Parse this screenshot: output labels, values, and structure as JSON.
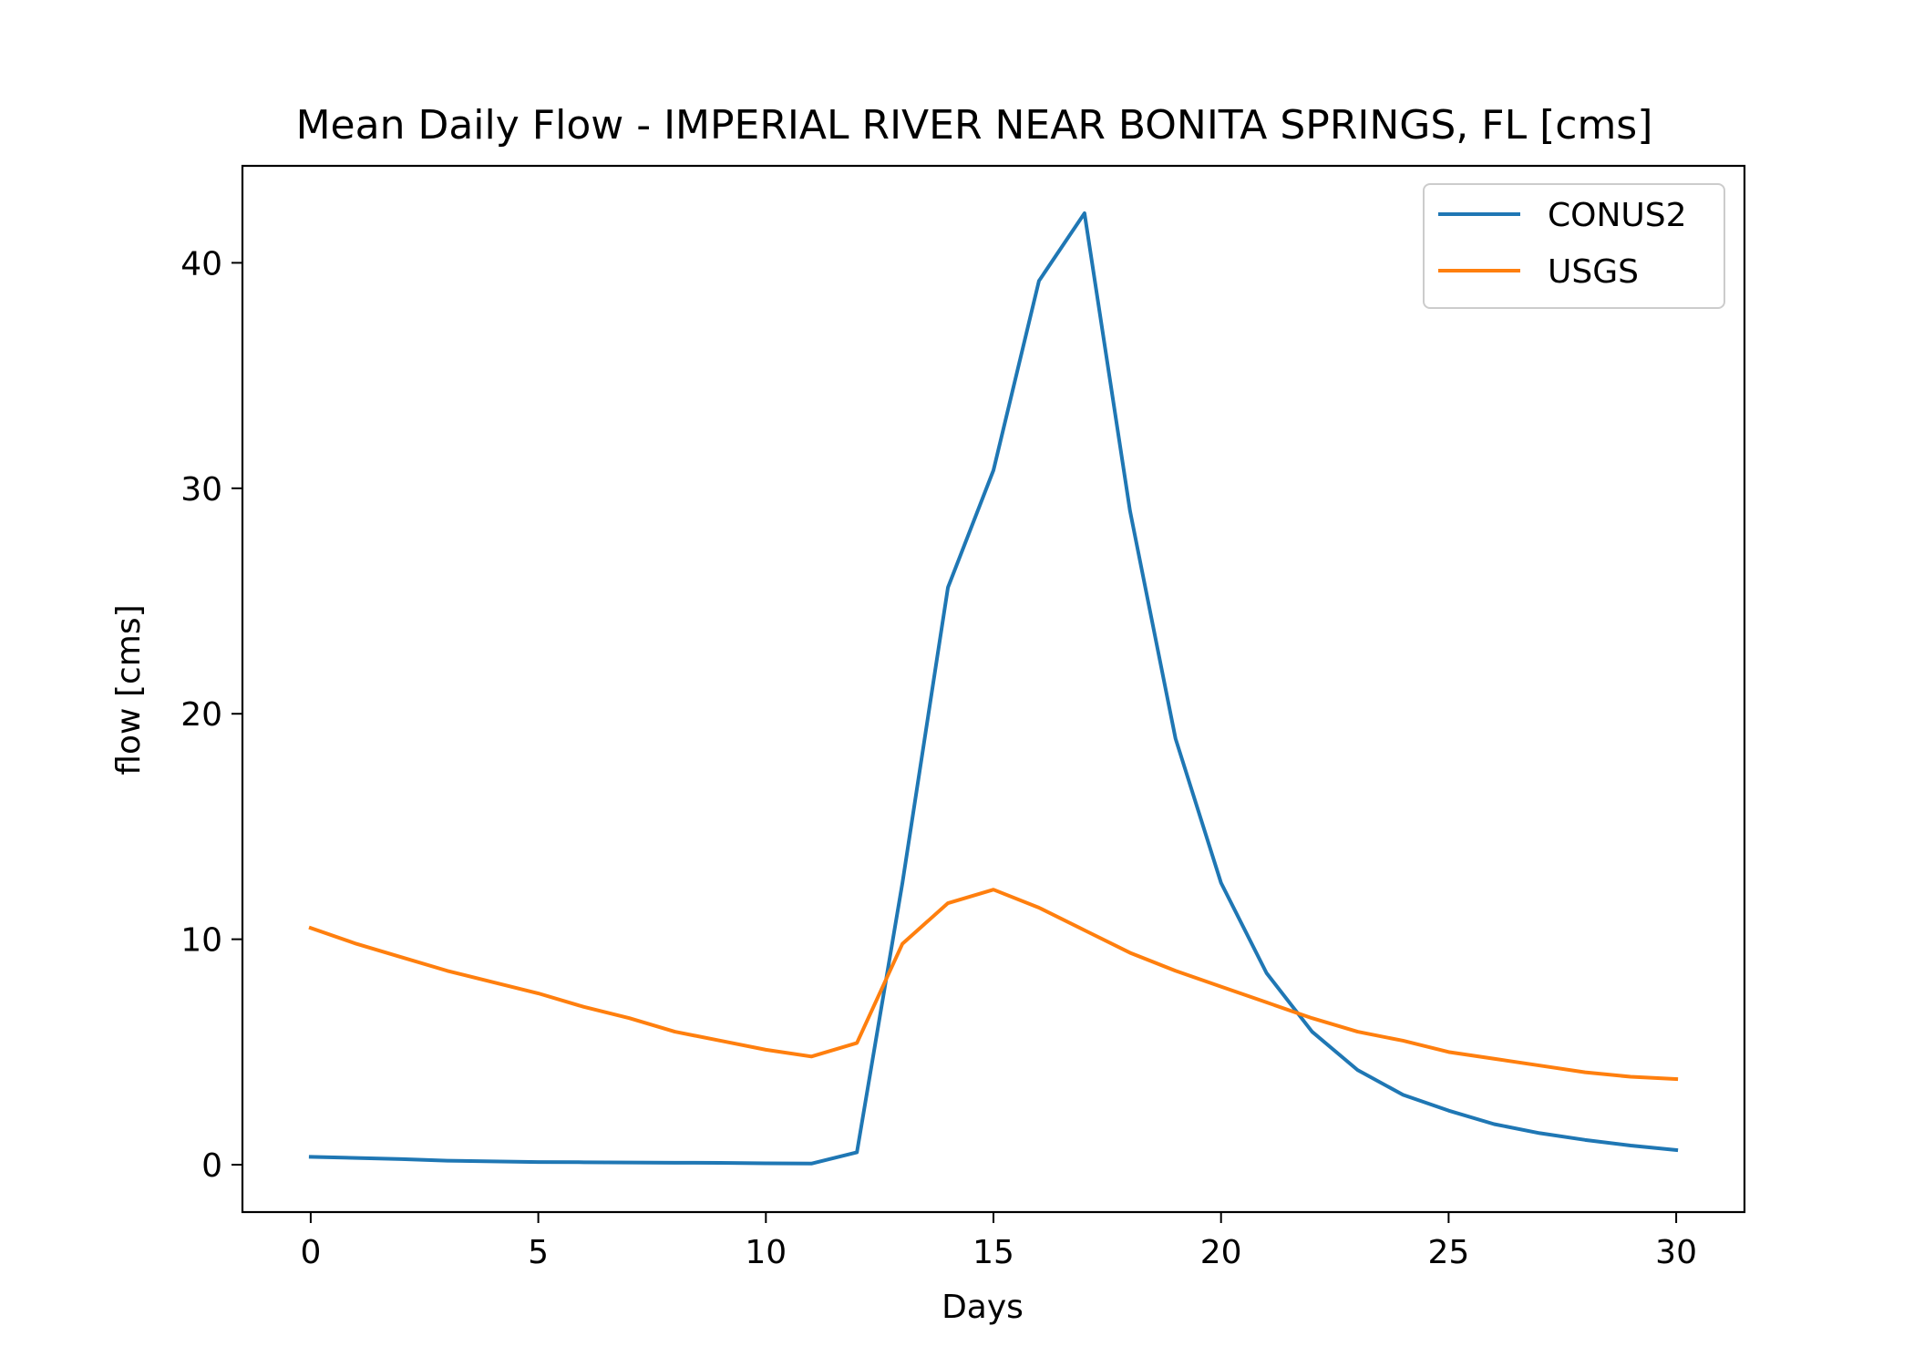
{
  "chart_data": {
    "type": "line",
    "title": "Mean Daily Flow - IMPERIAL RIVER NEAR BONITA SPRINGS, FL [cms]",
    "xlabel": "Days",
    "ylabel": "flow [cms]",
    "xlim": [
      -1.5,
      31.5
    ],
    "ylim": [
      -2.1,
      44.3
    ],
    "xticks": [
      0,
      5,
      10,
      15,
      20,
      25,
      30
    ],
    "yticks": [
      0,
      10,
      20,
      30,
      40
    ],
    "grid": false,
    "legend_position": "top-right",
    "x": [
      0,
      1,
      2,
      3,
      4,
      5,
      6,
      7,
      8,
      9,
      10,
      11,
      12,
      13,
      14,
      15,
      16,
      17,
      18,
      19,
      20,
      21,
      22,
      23,
      24,
      25,
      26,
      27,
      28,
      29,
      30
    ],
    "series": [
      {
        "name": "CONUS2",
        "color": "#1f77b4",
        "values": [
          0.35,
          0.3,
          0.25,
          0.18,
          0.15,
          0.12,
          0.11,
          0.1,
          0.09,
          0.08,
          0.06,
          0.05,
          0.55,
          12.5,
          25.6,
          30.8,
          39.2,
          42.2,
          29.0,
          18.9,
          12.5,
          8.5,
          5.9,
          4.2,
          3.1,
          2.4,
          1.8,
          1.4,
          1.1,
          0.85,
          0.65
        ]
      },
      {
        "name": "USGS",
        "color": "#ff7f0e",
        "values": [
          10.5,
          9.8,
          9.2,
          8.6,
          8.1,
          7.6,
          7.0,
          6.5,
          5.9,
          5.5,
          5.1,
          4.8,
          5.4,
          9.8,
          11.6,
          12.2,
          11.4,
          10.4,
          9.4,
          8.6,
          7.9,
          7.2,
          6.5,
          5.9,
          5.5,
          5.0,
          4.7,
          4.4,
          4.1,
          3.9,
          3.8
        ]
      }
    ]
  }
}
